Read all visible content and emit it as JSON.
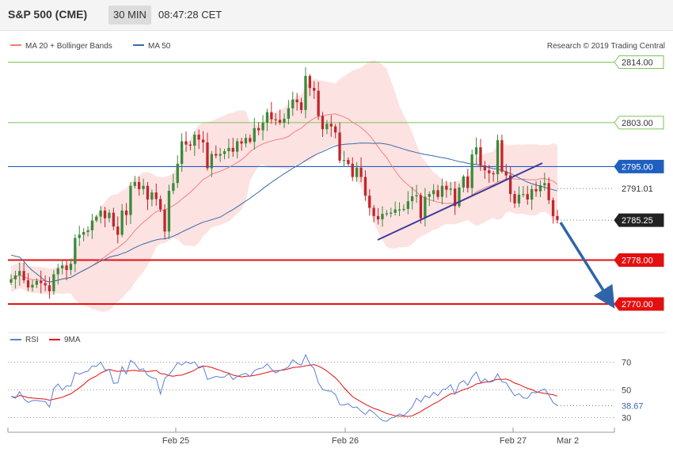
{
  "header": {
    "title": "S&P 500 (CME)",
    "timeframe": "30 MIN",
    "time": "08:47:28 CET"
  },
  "legend": {
    "ma20": "MA 20 + Bollinger Bands",
    "ma50": "MA 50",
    "credit": "Research © 2019 Trading Central",
    "rsi": "RSI",
    "rsi_ma": "9MA"
  },
  "colors": {
    "up_candle": "#3a8a3a",
    "down_candle": "#c0262b",
    "band_fill": "#fde2e2",
    "ma20": "#f08080",
    "ma50": "#3a6aa8",
    "support": "#e31010",
    "resistance": "#7dc35a",
    "pivot": "#1f5fbf",
    "trendline": "#3b3b9a",
    "arrow": "#2f65a8",
    "rsi": "#5b7fd6",
    "rsi_ma": "#e31010",
    "price_tag": "#222222"
  },
  "chart_data": {
    "type": "candlestick",
    "y_range": [
      2762,
      2818
    ],
    "x_labels": [
      "Feb 25",
      "Feb 26",
      "Feb 27",
      "Mar 2"
    ],
    "levels": [
      {
        "label": "2814.00",
        "value": 2814.0,
        "kind": "resistance"
      },
      {
        "label": "2803.00",
        "value": 2803.0,
        "kind": "resistance"
      },
      {
        "label": "2795.00",
        "value": 2795.0,
        "kind": "pivot"
      },
      {
        "label": "2791.01",
        "value": 2791.01,
        "kind": "ma"
      },
      {
        "label": "2785.25",
        "value": 2785.25,
        "kind": "last"
      },
      {
        "label": "2778.00",
        "value": 2778.0,
        "kind": "support"
      },
      {
        "label": "2770.00",
        "value": 2770.0,
        "kind": "support"
      }
    ],
    "close": [
      2774.5,
      2775.2,
      2776.0,
      2774.3,
      2773.0,
      2773.5,
      2774.2,
      2773.8,
      2773.4,
      2772.3,
      2775.4,
      2776.5,
      2777.0,
      2776.2,
      2777.3,
      2782.0,
      2782.6,
      2783.1,
      2783.4,
      2785.2,
      2785.9,
      2787.0,
      2785.6,
      2786.6,
      2784.1,
      2782.6,
      2787.0,
      2786.2,
      2791.5,
      2792.2,
      2790.9,
      2791.5,
      2789.0,
      2790.3,
      2789.1,
      2787.2,
      2783.2,
      2790.6,
      2792.0,
      2795.5,
      2799.6,
      2799.0,
      2798.8,
      2800.8,
      2799.9,
      2799.4,
      2794.7,
      2797.3,
      2797.0,
      2797.3,
      2797.8,
      2798.4,
      2797.7,
      2799.6,
      2799.2,
      2800.2,
      2799.5,
      2802.0,
      2801.6,
      2803.0,
      2804.9,
      2803.6,
      2803.5,
      2803.0,
      2803.7,
      2805.6,
      2807.2,
      2806.7,
      2805.3,
      2811.5,
      2809.3,
      2808.8,
      2804.2,
      2801.8,
      2802.8,
      2802.3,
      2801.2,
      2796.1,
      2796.2,
      2795.5,
      2793.1,
      2794.8,
      2793.1,
      2789.7,
      2787.5,
      2786.0,
      2785.4,
      2786.4,
      2786.5,
      2786.6,
      2787.2,
      2787.2,
      2787.3,
      2788.7,
      2789.6,
      2789.8,
      2785.6,
      2789.5,
      2790.0,
      2790.7,
      2789.5,
      2791.5,
      2790.8,
      2791.0,
      2787.8,
      2791.2,
      2793.2,
      2791.1,
      2797.2,
      2798.5,
      2795.2,
      2794.3,
      2793.8,
      2793.6,
      2799.8,
      2794.1,
      2793.4,
      2790.0,
      2788.3,
      2789.9,
      2790.0,
      2789.0,
      2790.9,
      2790.5,
      2791.6,
      2792.0,
      2788.9,
      2786.0,
      2785.3
    ],
    "rsi": [
      45.3,
      44.0,
      48.7,
      43.5,
      40.9,
      42.3,
      42.4,
      41.9,
      41.6,
      37.6,
      51.1,
      54.3,
      49.9,
      52.9,
      52.6,
      62.6,
      61.3,
      62.6,
      63.5,
      67.4,
      67.0,
      70.1,
      64.4,
      64.6,
      54.7,
      55.1,
      66.8,
      61.4,
      71.3,
      69.1,
      64.6,
      65.2,
      60.5,
      58.8,
      58.1,
      47.0,
      58.3,
      61.1,
      64.8,
      69.7,
      67.9,
      70.4,
      68.9,
      70.2,
      65.8,
      66.9,
      57.5,
      58.6,
      59.8,
      59.1,
      59.4,
      61.7,
      57.5,
      59.7,
      61.0,
      62.0,
      59.6,
      63.9,
      65.3,
      65.9,
      68.8,
      64.9,
      62.2,
      64.1,
      65.0,
      66.6,
      71.8,
      69.0,
      67.9,
      75.4,
      68.7,
      65.4,
      55.1,
      50.4,
      49.4,
      49.1,
      46.7,
      39.3,
      39.1,
      40.1,
      37.3,
      37.7,
      34.7,
      32.2,
      35.8,
      33.6,
      30.4,
      27.9,
      27.3,
      29.7,
      30.5,
      32.7,
      31.4,
      34.2,
      37.8,
      44.0,
      41.3,
      45.8,
      44.3,
      48.2,
      45.8,
      50.1,
      50.8,
      53.8,
      46.9,
      54.7,
      56.7,
      53.4,
      59.3,
      62.9,
      55.4,
      57.9,
      55.5,
      56.3,
      61.6,
      55.9,
      55.2,
      50.1,
      45.7,
      47.3,
      44.2,
      43.9,
      48.3,
      47.8,
      49.3,
      50.7,
      46.2,
      40.8,
      38.67
    ],
    "rsi_ticks": [
      70,
      50,
      30
    ],
    "rsi_last_label": "38.67"
  }
}
